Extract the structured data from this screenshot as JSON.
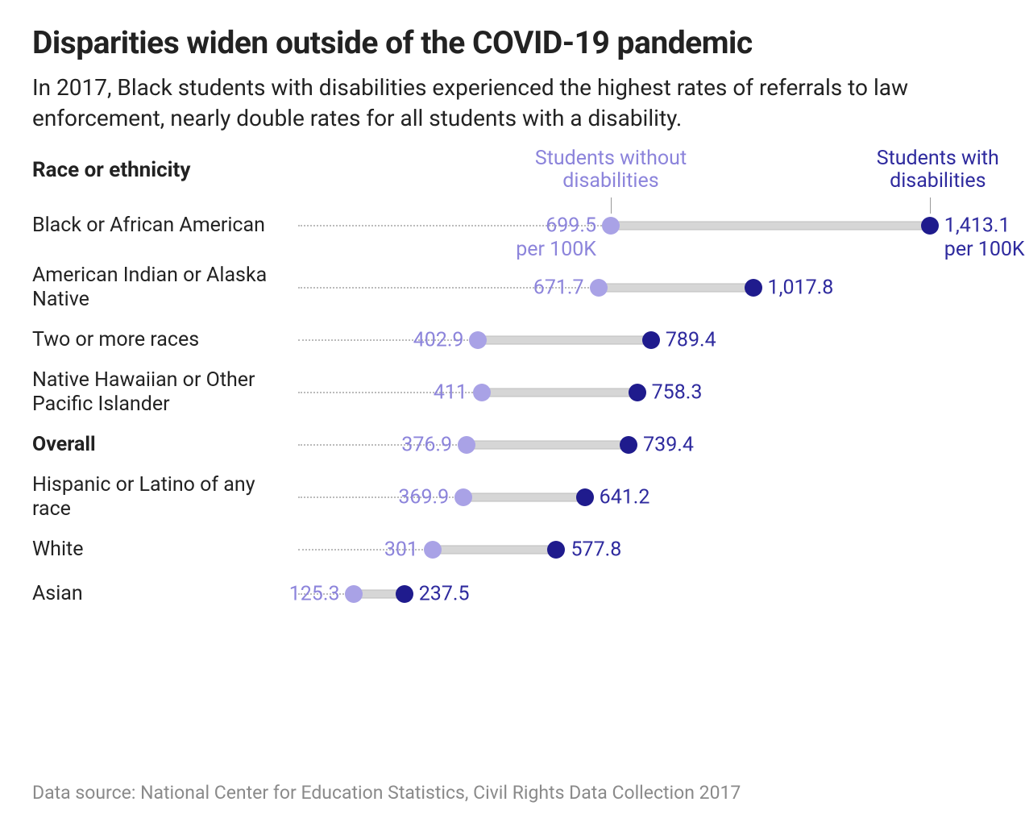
{
  "title": "Disparities widen outside of the COVID-19 pandemic",
  "subtitle": "In 2017, Black students with disabilities experienced the highest rates of referrals to law enforcement, nearly double rates for all students with a disability.",
  "axis_label": "Race or ethnicity",
  "legend": {
    "without": {
      "text": "Students without\ndisabilities",
      "color": "#9d97e0"
    },
    "with": {
      "text": "Students with\ndisabilities",
      "color": "#201d8e"
    }
  },
  "chart": {
    "type": "dot-range",
    "xmin": 0,
    "xmax": 1500,
    "dot_radius": 11,
    "bar_color": "#d6d6d6",
    "dotted_color": "#bbbbbb",
    "color_without": "#a9a2e6",
    "color_with": "#1f1b8d",
    "label_color_without": "#8c84db",
    "label_color_with": "#2e2a9e",
    "first_row_suffix": "per 100K",
    "label_fontsize": 25,
    "rows": [
      {
        "label": "Black or African American",
        "without": 699.5,
        "with": 1413.1,
        "without_text": "699.5",
        "with_text": "1,413.1",
        "bold": false,
        "show_suffix": true
      },
      {
        "label": "American Indian or Alaska Native",
        "without": 671.7,
        "with": 1017.8,
        "without_text": "671.7",
        "with_text": "1,017.8",
        "bold": false,
        "show_suffix": false
      },
      {
        "label": "Two or more races",
        "without": 402.9,
        "with": 789.4,
        "without_text": "402.9",
        "with_text": "789.4",
        "bold": false,
        "show_suffix": false
      },
      {
        "label": "Native Hawaiian or Other Pacific Islander",
        "without": 411,
        "with": 758.3,
        "without_text": "411",
        "with_text": "758.3",
        "bold": false,
        "show_suffix": false
      },
      {
        "label": "Overall",
        "without": 376.9,
        "with": 739.4,
        "without_text": "376.9",
        "with_text": "739.4",
        "bold": true,
        "show_suffix": false
      },
      {
        "label": "Hispanic or Latino of any race",
        "without": 369.9,
        "with": 641.2,
        "without_text": "369.9",
        "with_text": "641.2",
        "bold": false,
        "show_suffix": false
      },
      {
        "label": "White",
        "without": 301,
        "with": 577.8,
        "without_text": "301",
        "with_text": "577.8",
        "bold": false,
        "show_suffix": false
      },
      {
        "label": "Asian",
        "without": 125.3,
        "with": 237.5,
        "without_text": "125.3",
        "with_text": "237.5",
        "bold": false,
        "show_suffix": false
      }
    ]
  },
  "footer": "Data source: National Center for Education Statistics, Civil Rights Data Collection 2017"
}
